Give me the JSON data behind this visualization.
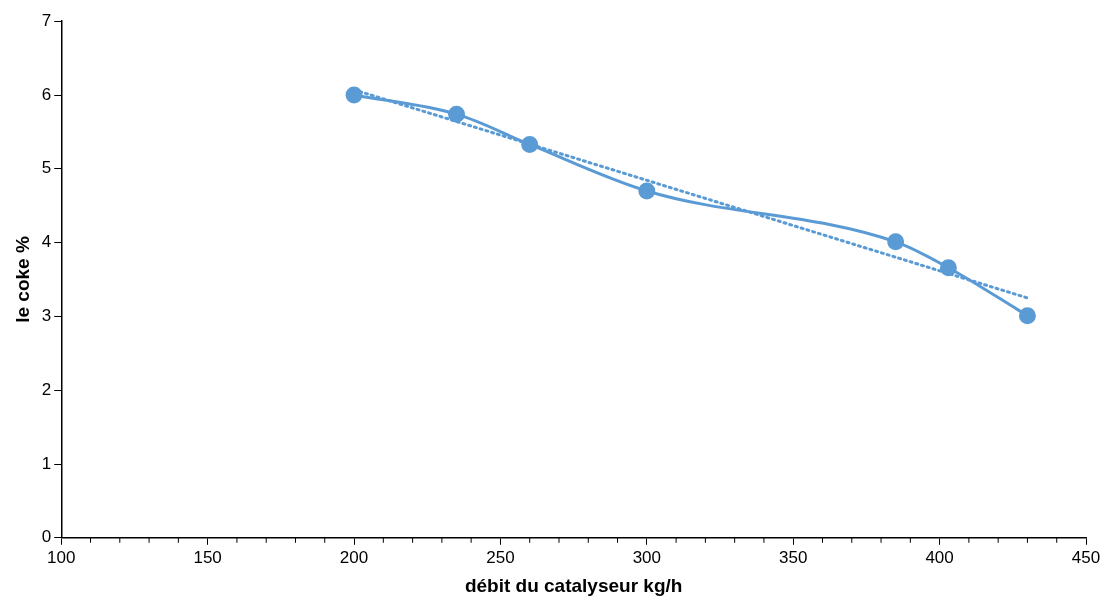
{
  "chart_data": {
    "type": "line",
    "xlabel": "débit du catalyseur kg/h",
    "ylabel": "le coke %",
    "x": [
      200,
      235,
      260,
      300,
      385,
      403,
      430
    ],
    "series": [
      {
        "color": "#5b9bd5",
        "values": [
          6.0,
          5.74,
          5.33,
          4.7,
          4.01,
          3.66,
          3.01
        ],
        "marker": "circle",
        "line_style": "solid"
      },
      {
        "type": "line",
        "x": [
          200,
          430
        ],
        "color": "#5b9bd5",
        "values": [
          6.07,
          3.25
        ],
        "marker": "none",
        "line_style": "dotted"
      }
    ],
    "xlim": [
      100,
      450
    ],
    "xticks": [
      100,
      150,
      200,
      250,
      300,
      350,
      400,
      450
    ],
    "ylim": [
      0,
      7
    ],
    "yticks": [
      0,
      1,
      2,
      3,
      4,
      5,
      6,
      7
    ],
    "grid": false,
    "legend": false
  }
}
